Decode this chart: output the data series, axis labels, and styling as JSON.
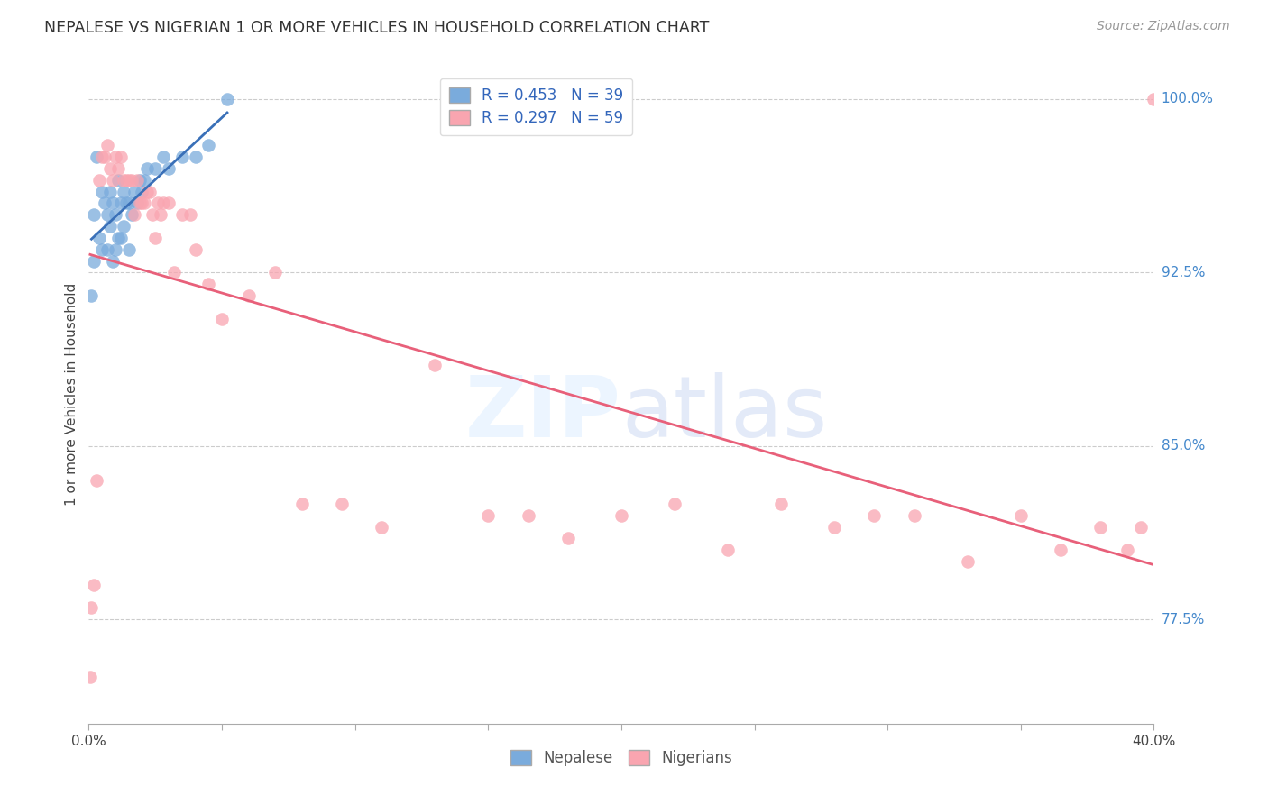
{
  "title": "NEPALESE VS NIGERIAN 1 OR MORE VEHICLES IN HOUSEHOLD CORRELATION CHART",
  "source": "Source: ZipAtlas.com",
  "ylabel": "1 or more Vehicles in Household",
  "background_color": "#ffffff",
  "blue_color": "#7aabdc",
  "pink_color": "#f9a5b0",
  "blue_line_color": "#3a70b8",
  "pink_line_color": "#e8607a",
  "legend_blue_label": "R = 0.453   N = 39",
  "legend_pink_label": "R = 0.297   N = 59",
  "legend_nepalese": "Nepalese",
  "legend_nigerians": "Nigerians",
  "nepalese_x": [
    0.1,
    0.2,
    0.2,
    0.3,
    0.4,
    0.5,
    0.5,
    0.6,
    0.7,
    0.7,
    0.8,
    0.8,
    0.9,
    0.9,
    1.0,
    1.0,
    1.1,
    1.1,
    1.2,
    1.2,
    1.3,
    1.3,
    1.4,
    1.5,
    1.5,
    1.6,
    1.7,
    1.8,
    1.9,
    2.0,
    2.1,
    2.2,
    2.5,
    2.8,
    3.0,
    3.5,
    4.0,
    4.5,
    5.2
  ],
  "nepalese_y": [
    91.5,
    93.0,
    95.0,
    97.5,
    94.0,
    93.5,
    96.0,
    95.5,
    93.5,
    95.0,
    94.5,
    96.0,
    93.0,
    95.5,
    93.5,
    95.0,
    94.0,
    96.5,
    94.0,
    95.5,
    94.5,
    96.0,
    95.5,
    93.5,
    95.5,
    95.0,
    96.0,
    95.5,
    96.5,
    96.0,
    96.5,
    97.0,
    97.0,
    97.5,
    97.0,
    97.5,
    97.5,
    98.0,
    100.0
  ],
  "nigerian_x": [
    0.05,
    0.1,
    0.2,
    0.3,
    0.4,
    0.5,
    0.6,
    0.7,
    0.8,
    0.9,
    1.0,
    1.1,
    1.2,
    1.3,
    1.4,
    1.5,
    1.6,
    1.7,
    1.8,
    1.9,
    2.0,
    2.1,
    2.2,
    2.3,
    2.4,
    2.5,
    2.6,
    2.7,
    2.8,
    3.0,
    3.2,
    3.5,
    3.8,
    4.0,
    4.5,
    5.0,
    6.0,
    7.0,
    8.0,
    9.5,
    11.0,
    13.0,
    15.0,
    16.5,
    18.0,
    20.0,
    22.0,
    24.0,
    26.0,
    28.0,
    29.5,
    31.0,
    33.0,
    35.0,
    36.5,
    38.0,
    39.0,
    39.5,
    40.0
  ],
  "nigerian_y": [
    75.0,
    78.0,
    79.0,
    83.5,
    96.5,
    97.5,
    97.5,
    98.0,
    97.0,
    96.5,
    97.5,
    97.0,
    97.5,
    96.5,
    96.5,
    96.5,
    96.5,
    95.0,
    96.5,
    95.5,
    95.5,
    95.5,
    96.0,
    96.0,
    95.0,
    94.0,
    95.5,
    95.0,
    95.5,
    95.5,
    92.5,
    95.0,
    95.0,
    93.5,
    92.0,
    90.5,
    91.5,
    92.5,
    82.5,
    82.5,
    81.5,
    88.5,
    82.0,
    82.0,
    81.0,
    82.0,
    82.5,
    80.5,
    82.5,
    81.5,
    82.0,
    82.0,
    80.0,
    82.0,
    80.5,
    81.5,
    80.5,
    81.5,
    100.0
  ]
}
